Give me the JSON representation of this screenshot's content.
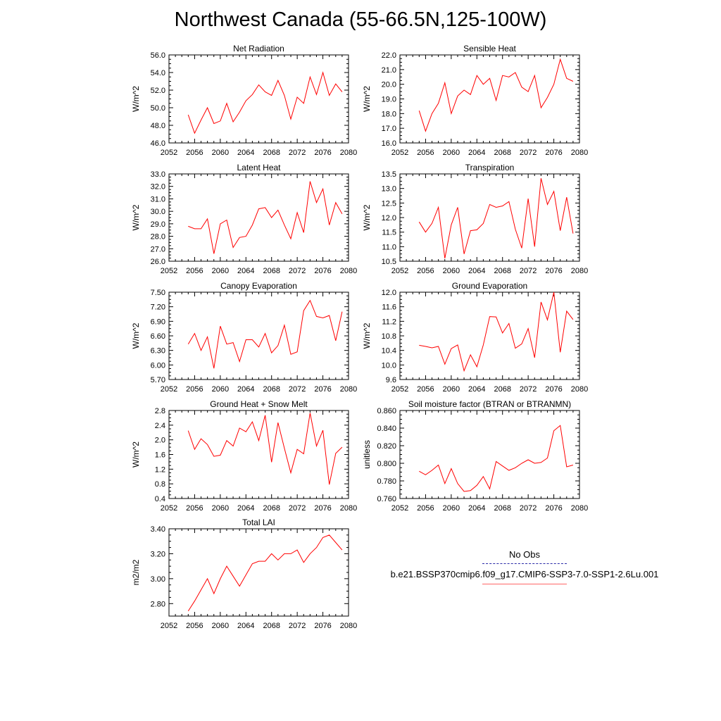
{
  "page": {
    "title": "Northwest Canada (55-66.5N,125-100W)"
  },
  "legend": {
    "obs_label": "No Obs",
    "run_label": "b.e21.BSSP370cmip6.f09_g17.CMIP6-SSP3-7.0-SSP1-2.6Lu.001",
    "obs_color": "#2a2aa8",
    "run_color": "#ff0000"
  },
  "chart_data": [
    {
      "type": "line",
      "title": "Net Radiation",
      "ylabel": "W/m^2",
      "xlim": [
        2052,
        2080
      ],
      "xticks": [
        "2052",
        "2056",
        "2060",
        "2064",
        "2068",
        "2072",
        "2076",
        "2080"
      ],
      "ylim": [
        46,
        56
      ],
      "yticks": [
        "46.0",
        "48.0",
        "50.0",
        "52.0",
        "54.0",
        "56.0"
      ],
      "series": [
        {
          "color": "#ff0000",
          "x": [
            2055,
            2056,
            2057,
            2058,
            2059,
            2060,
            2061,
            2062,
            2063,
            2064,
            2065,
            2066,
            2067,
            2068,
            2069,
            2070,
            2071,
            2072,
            2073,
            2074,
            2075,
            2076,
            2077,
            2078,
            2079
          ],
          "values": [
            49.2,
            47.1,
            48.6,
            50.0,
            48.2,
            48.5,
            50.5,
            48.4,
            49.5,
            50.8,
            51.5,
            52.6,
            51.8,
            51.4,
            53.1,
            51.4,
            48.7,
            51.2,
            50.5,
            53.5,
            51.5,
            54.0,
            51.4,
            52.7,
            51.8
          ]
        }
      ]
    },
    {
      "type": "line",
      "title": "Sensible Heat",
      "ylabel": "W/m^2",
      "xlim": [
        2052,
        2080
      ],
      "xticks": [
        "2052",
        "2056",
        "2060",
        "2064",
        "2068",
        "2072",
        "2076",
        "2080"
      ],
      "ylim": [
        16,
        22
      ],
      "yticks": [
        "16.0",
        "17.0",
        "18.0",
        "19.0",
        "20.0",
        "21.0",
        "22.0"
      ],
      "series": [
        {
          "color": "#ff0000",
          "x": [
            2055,
            2056,
            2057,
            2058,
            2059,
            2060,
            2061,
            2062,
            2063,
            2064,
            2065,
            2066,
            2067,
            2068,
            2069,
            2070,
            2071,
            2072,
            2073,
            2074,
            2075,
            2076,
            2077,
            2078,
            2079
          ],
          "values": [
            18.2,
            16.8,
            18.0,
            18.7,
            20.1,
            18.0,
            19.2,
            19.6,
            19.3,
            20.6,
            20.0,
            20.4,
            18.9,
            20.6,
            20.5,
            20.8,
            19.8,
            19.5,
            20.6,
            18.4,
            19.1,
            20.0,
            21.7,
            20.4,
            20.2
          ]
        }
      ]
    },
    {
      "type": "line",
      "title": "Latent Heat",
      "ylabel": "W/m^2",
      "xlim": [
        2052,
        2080
      ],
      "xticks": [
        "2052",
        "2056",
        "2060",
        "2064",
        "2068",
        "2072",
        "2076",
        "2080"
      ],
      "ylim": [
        26,
        33
      ],
      "yticks": [
        "26.0",
        "27.0",
        "28.0",
        "29.0",
        "30.0",
        "31.0",
        "32.0",
        "33.0"
      ],
      "series": [
        {
          "color": "#ff0000",
          "x": [
            2055,
            2056,
            2057,
            2058,
            2059,
            2060,
            2061,
            2062,
            2063,
            2064,
            2065,
            2066,
            2067,
            2068,
            2069,
            2070,
            2071,
            2072,
            2073,
            2074,
            2075,
            2076,
            2077,
            2078,
            2079
          ],
          "values": [
            28.8,
            28.6,
            28.6,
            29.4,
            26.6,
            29.0,
            29.3,
            27.1,
            27.9,
            28.0,
            28.9,
            30.2,
            30.3,
            29.5,
            30.1,
            28.9,
            27.8,
            29.9,
            28.3,
            32.4,
            30.7,
            31.8,
            28.9,
            30.7,
            29.8
          ]
        }
      ]
    },
    {
      "type": "line",
      "title": "Transpiration",
      "ylabel": "W/m^2",
      "xlim": [
        2052,
        2080
      ],
      "xticks": [
        "2052",
        "2056",
        "2060",
        "2064",
        "2068",
        "2072",
        "2076",
        "2080"
      ],
      "ylim": [
        10.5,
        13.5
      ],
      "yticks": [
        "10.5",
        "11.0",
        "11.5",
        "12.0",
        "12.5",
        "13.0",
        "13.5"
      ],
      "series": [
        {
          "color": "#ff0000",
          "x": [
            2055,
            2056,
            2057,
            2058,
            2059,
            2060,
            2061,
            2062,
            2063,
            2064,
            2065,
            2066,
            2067,
            2068,
            2069,
            2070,
            2071,
            2072,
            2073,
            2074,
            2075,
            2076,
            2077,
            2078,
            2079
          ],
          "values": [
            11.85,
            11.5,
            11.8,
            12.35,
            10.6,
            11.75,
            12.35,
            10.75,
            11.55,
            11.58,
            11.8,
            12.45,
            12.35,
            12.4,
            12.55,
            11.6,
            10.95,
            12.65,
            11.0,
            13.35,
            12.45,
            12.9,
            11.55,
            12.7,
            11.45
          ]
        }
      ]
    },
    {
      "type": "line",
      "title": "Canopy Evaporation",
      "ylabel": "W/m^2",
      "xlim": [
        2052,
        2080
      ],
      "xticks": [
        "2052",
        "2056",
        "2060",
        "2064",
        "2068",
        "2072",
        "2076",
        "2080"
      ],
      "ylim": [
        5.7,
        7.5
      ],
      "yticks": [
        "5.70",
        "6.00",
        "6.30",
        "6.60",
        "6.90",
        "7.20",
        "7.50"
      ],
      "series": [
        {
          "color": "#ff0000",
          "x": [
            2055,
            2056,
            2057,
            2058,
            2059,
            2060,
            2061,
            2062,
            2063,
            2064,
            2065,
            2066,
            2067,
            2068,
            2069,
            2070,
            2071,
            2072,
            2073,
            2074,
            2075,
            2076,
            2077,
            2078,
            2079
          ],
          "values": [
            6.43,
            6.65,
            6.3,
            6.58,
            5.93,
            6.8,
            6.43,
            6.46,
            6.07,
            6.52,
            6.52,
            6.37,
            6.65,
            6.25,
            6.4,
            6.82,
            6.22,
            6.27,
            7.12,
            7.33,
            7.0,
            6.97,
            7.02,
            6.5,
            7.1
          ]
        }
      ]
    },
    {
      "type": "line",
      "title": "Ground Evaporation",
      "ylabel": "W/m^2",
      "xlim": [
        2052,
        2080
      ],
      "xticks": [
        "2052",
        "2056",
        "2060",
        "2064",
        "2068",
        "2072",
        "2076",
        "2080"
      ],
      "ylim": [
        9.6,
        12.0
      ],
      "yticks": [
        "9.6",
        "10.0",
        "10.4",
        "10.8",
        "11.2",
        "11.6",
        "12.0"
      ],
      "series": [
        {
          "color": "#ff0000",
          "x": [
            2055,
            2056,
            2057,
            2058,
            2059,
            2060,
            2061,
            2062,
            2063,
            2064,
            2065,
            2066,
            2067,
            2068,
            2069,
            2070,
            2071,
            2072,
            2073,
            2074,
            2075,
            2076,
            2077,
            2078,
            2079
          ],
          "values": [
            10.54,
            10.51,
            10.47,
            10.51,
            10.02,
            10.45,
            10.55,
            9.84,
            10.28,
            9.95,
            10.55,
            11.33,
            11.32,
            10.88,
            11.14,
            10.46,
            10.58,
            11.0,
            10.2,
            11.73,
            11.24,
            12.0,
            10.35,
            11.48,
            11.25
          ]
        }
      ]
    },
    {
      "type": "line",
      "title": "Ground Heat + Snow Melt",
      "ylabel": "W/m^2",
      "xlim": [
        2052,
        2080
      ],
      "xticks": [
        "2052",
        "2056",
        "2060",
        "2064",
        "2068",
        "2072",
        "2076",
        "2080"
      ],
      "ylim": [
        0.4,
        2.8
      ],
      "yticks": [
        "0.4",
        "0.8",
        "1.2",
        "1.6",
        "2.0",
        "2.4",
        "2.8"
      ],
      "series": [
        {
          "color": "#ff0000",
          "x": [
            2055,
            2056,
            2057,
            2058,
            2059,
            2060,
            2061,
            2062,
            2063,
            2064,
            2065,
            2066,
            2067,
            2068,
            2069,
            2070,
            2071,
            2072,
            2073,
            2074,
            2075,
            2076,
            2077,
            2078,
            2079
          ],
          "values": [
            2.25,
            1.74,
            2.03,
            1.87,
            1.55,
            1.58,
            1.98,
            1.83,
            2.32,
            2.22,
            2.49,
            1.98,
            2.67,
            1.39,
            2.47,
            1.77,
            1.1,
            1.74,
            1.62,
            2.73,
            1.83,
            2.26,
            0.78,
            1.63,
            1.8
          ]
        }
      ]
    },
    {
      "type": "line",
      "title": "Soil moisture factor (BTRAN or BTRANMN)",
      "ylabel": "unitless",
      "xlim": [
        2052,
        2080
      ],
      "xticks": [
        "2052",
        "2056",
        "2060",
        "2064",
        "2068",
        "2072",
        "2076",
        "2080"
      ],
      "ylim": [
        0.76,
        0.86
      ],
      "yticks": [
        "0.760",
        "0.780",
        "0.800",
        "0.820",
        "0.840",
        "0.860"
      ],
      "series": [
        {
          "color": "#ff0000",
          "x": [
            2055,
            2056,
            2057,
            2058,
            2059,
            2060,
            2061,
            2062,
            2063,
            2064,
            2065,
            2066,
            2067,
            2068,
            2069,
            2070,
            2071,
            2072,
            2073,
            2074,
            2075,
            2076,
            2077,
            2078,
            2079
          ],
          "values": [
            0.791,
            0.787,
            0.792,
            0.798,
            0.777,
            0.794,
            0.777,
            0.768,
            0.769,
            0.775,
            0.785,
            0.771,
            0.802,
            0.797,
            0.792,
            0.795,
            0.8,
            0.804,
            0.8,
            0.801,
            0.806,
            0.837,
            0.843,
            0.796,
            0.798
          ]
        }
      ]
    },
    {
      "type": "line",
      "title": "Total LAI",
      "ylabel": "m2/m2",
      "xlim": [
        2052,
        2080
      ],
      "xticks": [
        "2052",
        "2056",
        "2060",
        "2064",
        "2068",
        "2072",
        "2076",
        "2080"
      ],
      "ylim": [
        2.7,
        3.4
      ],
      "yticks": [
        "2.80",
        "3.00",
        "3.20",
        "3.40"
      ],
      "series": [
        {
          "color": "#ff0000",
          "x": [
            2055,
            2056,
            2057,
            2058,
            2059,
            2060,
            2061,
            2062,
            2063,
            2064,
            2065,
            2066,
            2067,
            2068,
            2069,
            2070,
            2071,
            2072,
            2073,
            2074,
            2075,
            2076,
            2077,
            2078,
            2079
          ],
          "values": [
            2.74,
            2.82,
            2.91,
            3.0,
            2.88,
            3.0,
            3.1,
            3.02,
            2.94,
            3.03,
            3.12,
            3.14,
            3.14,
            3.2,
            3.15,
            3.2,
            3.2,
            3.23,
            3.13,
            3.2,
            3.25,
            3.33,
            3.35,
            3.29,
            3.23
          ]
        }
      ]
    }
  ]
}
